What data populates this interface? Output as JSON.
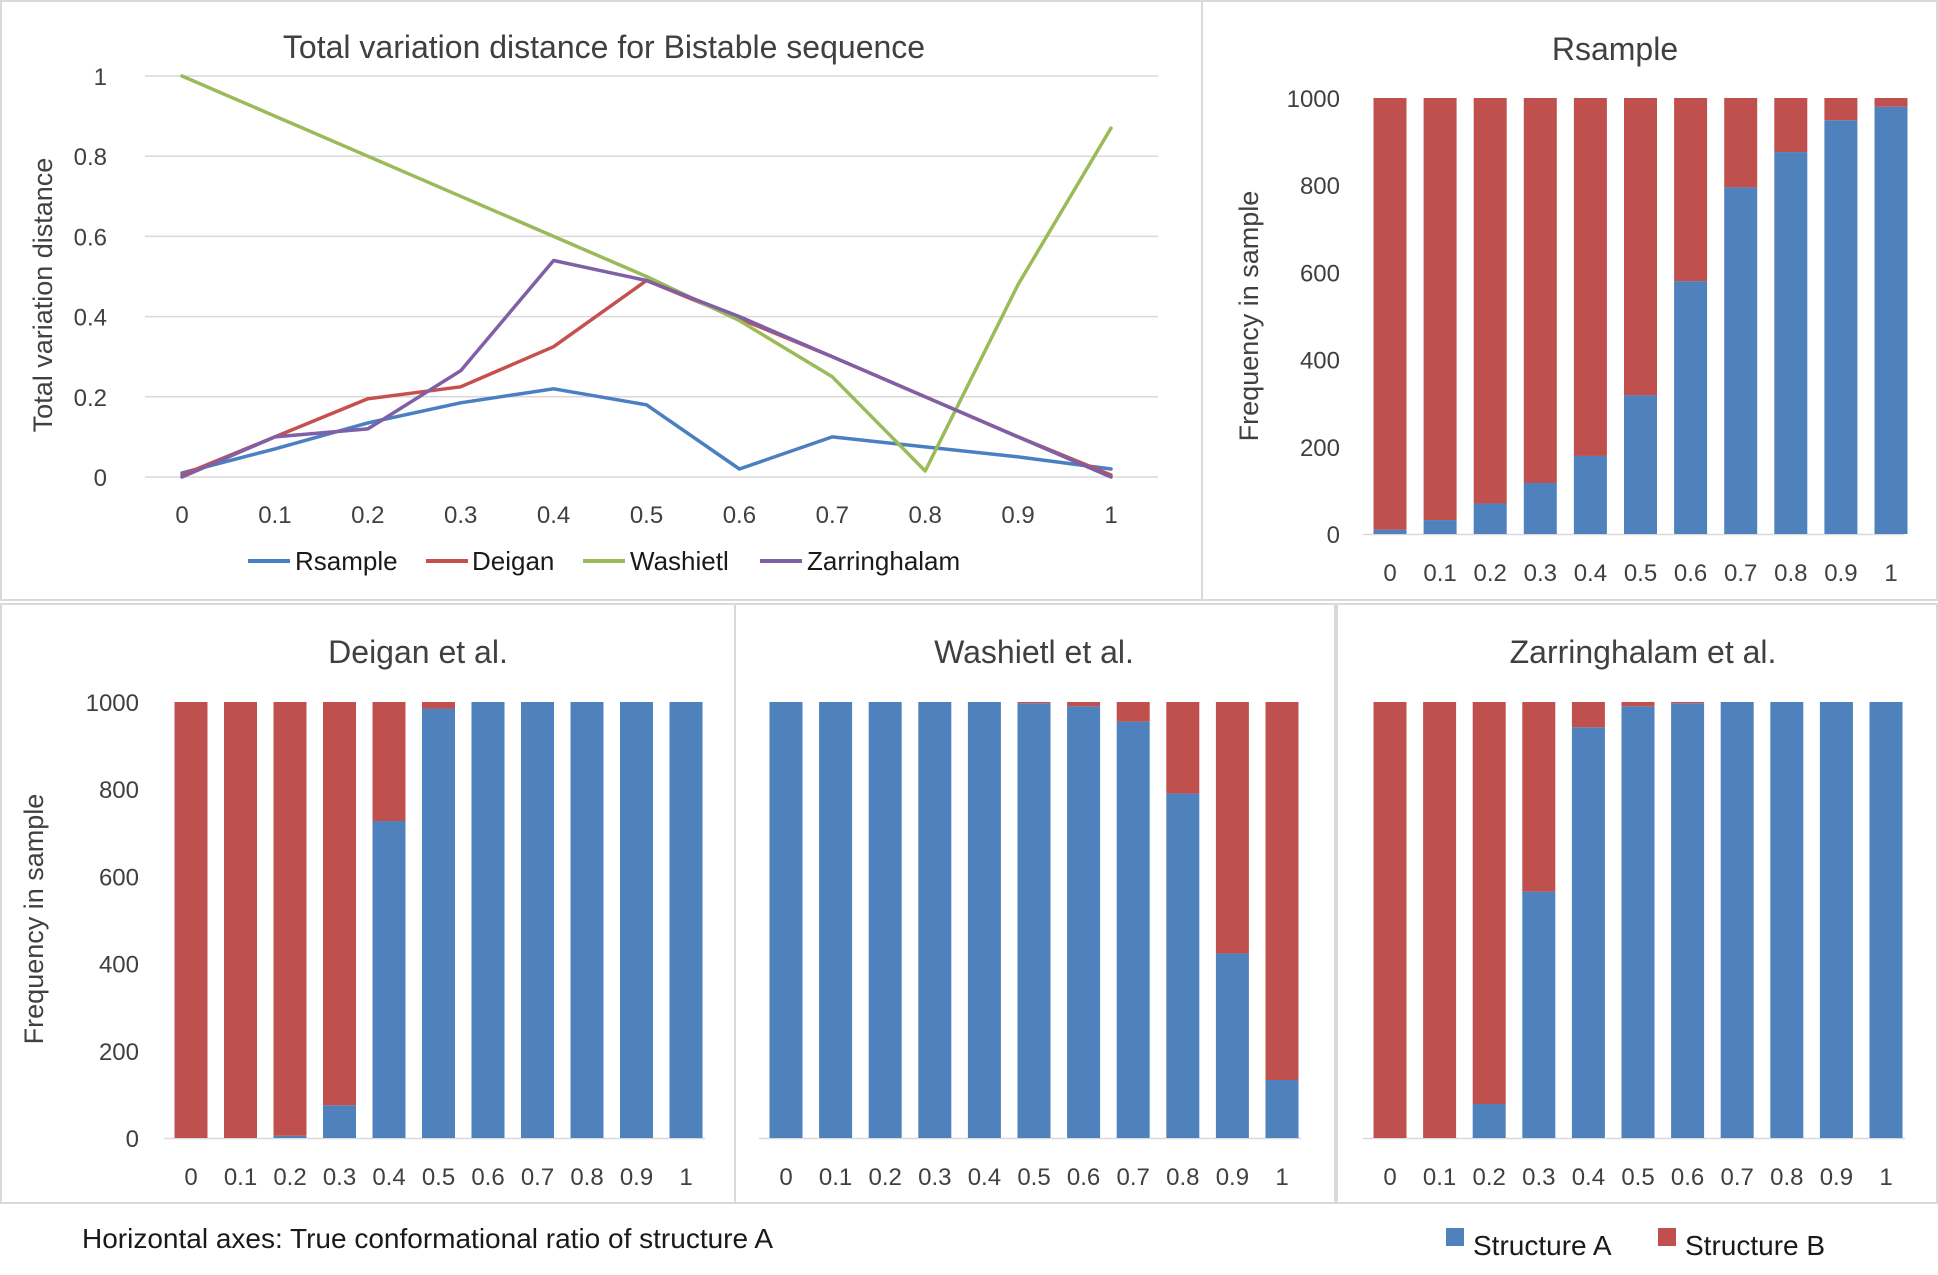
{
  "colors": {
    "structure_a": "#4f81bd",
    "structure_b": "#c0504d",
    "rsample": "#4a7fc1",
    "deigan": "#c6504d",
    "washietl": "#9bbb59",
    "zarringhalam": "#7f5fa6",
    "grid": "#d9d9d9",
    "border": "#d9d9d9"
  },
  "chart_data": [
    {
      "id": "tvd",
      "type": "line",
      "title": "Total variation distance for Bistable sequence",
      "xlabel": "",
      "ylabel": "Total variation distance",
      "x": [
        "0",
        "0.1",
        "0.2",
        "0.3",
        "0.4",
        "0.5",
        "0.6",
        "0.7",
        "0.8",
        "0.9",
        "1"
      ],
      "ylim": [
        0,
        1
      ],
      "yticks": [
        "0",
        "0.2",
        "0.4",
        "0.6",
        "0.8",
        "1"
      ],
      "grid": true,
      "legend": "bottom",
      "series": [
        {
          "name": "Rsample",
          "values": [
            0.01,
            0.07,
            0.135,
            0.185,
            0.22,
            0.18,
            0.02,
            0.1,
            0.075,
            0.05,
            0.02
          ]
        },
        {
          "name": "Deigan",
          "values": [
            0.005,
            0.1,
            0.195,
            0.225,
            0.325,
            0.49,
            0.395,
            0.3,
            0.2,
            0.1,
            0.005
          ]
        },
        {
          "name": "Washietl",
          "values": [
            1.0,
            0.9,
            0.8,
            0.7,
            0.6,
            0.5,
            0.39,
            0.25,
            0.015,
            0.48,
            0.87
          ]
        },
        {
          "name": "Zarringhalam",
          "values": [
            0.0,
            0.1,
            0.12,
            0.265,
            0.54,
            0.49,
            0.4,
            0.3,
            0.2,
            0.1,
            0.0
          ]
        }
      ]
    },
    {
      "id": "rsample",
      "type": "bar",
      "stacked": true,
      "title": "Rsample",
      "ylabel": "Frequency in sample",
      "categories": [
        "0",
        "0.1",
        "0.2",
        "0.3",
        "0.4",
        "0.5",
        "0.6",
        "0.7",
        "0.8",
        "0.9",
        "1"
      ],
      "ylim": [
        0,
        1000
      ],
      "yticks": [
        "0",
        "200",
        "400",
        "600",
        "800",
        "1000"
      ],
      "series": [
        {
          "name": "Structure A",
          "values": [
            10,
            32,
            70,
            117,
            179,
            318,
            580,
            795,
            876,
            949,
            980
          ]
        },
        {
          "name": "Structure B",
          "values": [
            990,
            968,
            930,
            883,
            821,
            682,
            420,
            205,
            124,
            51,
            20
          ]
        }
      ]
    },
    {
      "id": "deigan",
      "type": "bar",
      "stacked": true,
      "title": "Deigan et al.",
      "ylabel": "Frequency in sample",
      "categories": [
        "0",
        "0.1",
        "0.2",
        "0.3",
        "0.4",
        "0.5",
        "0.6",
        "0.7",
        "0.8",
        "0.9",
        "1"
      ],
      "ylim": [
        0,
        1000
      ],
      "yticks": [
        "0",
        "200",
        "400",
        "600",
        "800",
        "1000"
      ],
      "series": [
        {
          "name": "Structure A",
          "values": [
            0,
            0,
            5,
            75,
            727,
            985,
            1000,
            1000,
            1000,
            1000,
            1000
          ]
        },
        {
          "name": "Structure B",
          "values": [
            1000,
            1000,
            995,
            925,
            273,
            15,
            0,
            0,
            0,
            0,
            0
          ]
        }
      ]
    },
    {
      "id": "washietl",
      "type": "bar",
      "stacked": true,
      "title": "Washietl et al.",
      "ylabel": "",
      "categories": [
        "0",
        "0.1",
        "0.2",
        "0.3",
        "0.4",
        "0.5",
        "0.6",
        "0.7",
        "0.8",
        "0.9",
        "1"
      ],
      "ylim": [
        0,
        1000
      ],
      "yticks": [],
      "series": [
        {
          "name": "Structure A",
          "values": [
            1000,
            1000,
            1000,
            1000,
            1000,
            997,
            990,
            955,
            790,
            423,
            133
          ]
        },
        {
          "name": "Structure B",
          "values": [
            0,
            0,
            0,
            0,
            0,
            3,
            10,
            45,
            210,
            577,
            867
          ]
        }
      ]
    },
    {
      "id": "zarringhalam",
      "type": "bar",
      "stacked": true,
      "title": "Zarringhalam et al.",
      "ylabel": "",
      "categories": [
        "0",
        "0.1",
        "0.2",
        "0.3",
        "0.4",
        "0.5",
        "0.6",
        "0.7",
        "0.8",
        "0.9",
        "1"
      ],
      "ylim": [
        0,
        1000
      ],
      "yticks": [],
      "series": [
        {
          "name": "Structure A",
          "values": [
            0,
            0,
            78,
            565,
            942,
            990,
            997,
            1000,
            1000,
            1000,
            1000
          ]
        },
        {
          "name": "Structure B",
          "values": [
            1000,
            1000,
            922,
            435,
            58,
            10,
            3,
            0,
            0,
            0,
            0
          ]
        }
      ]
    }
  ],
  "footer": {
    "note": "Horizontal axes: True conformational ratio of structure A",
    "legend": [
      "Structure A",
      "Structure B"
    ]
  }
}
